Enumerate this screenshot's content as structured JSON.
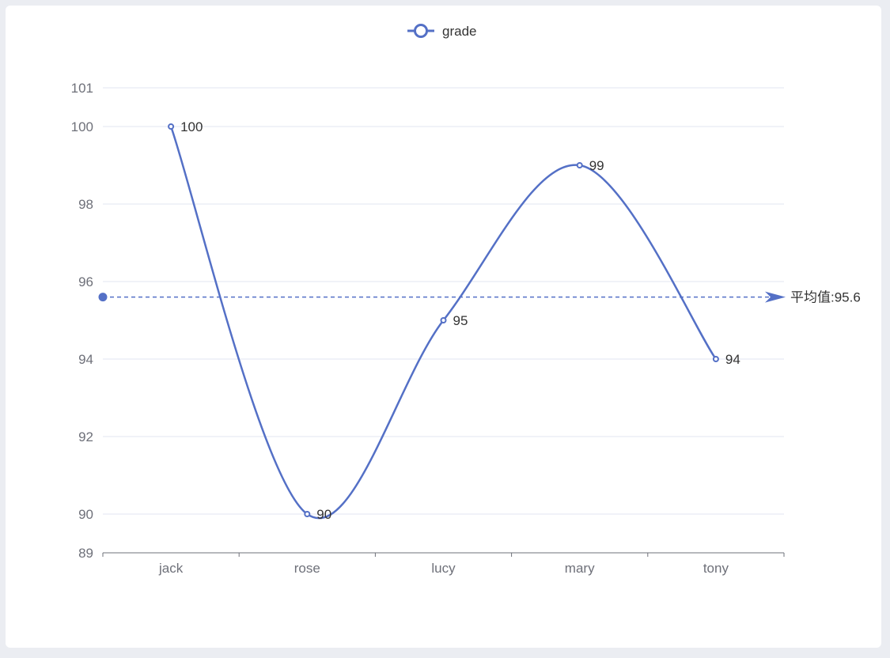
{
  "chart_data": {
    "type": "line",
    "smooth": true,
    "categories": [
      "jack",
      "rose",
      "lucy",
      "mary",
      "tony"
    ],
    "series": [
      {
        "name": "grade",
        "values": [
          100,
          90,
          95,
          99,
          94
        ],
        "color": "#5470c6"
      }
    ],
    "ylim": [
      89,
      101
    ],
    "yticks": [
      89,
      90,
      92,
      94,
      96,
      98,
      100,
      101
    ],
    "grid": true,
    "legend": "top-center",
    "mark_line": {
      "type": "average",
      "value": 95.6,
      "label": "平均值:95.6"
    }
  }
}
